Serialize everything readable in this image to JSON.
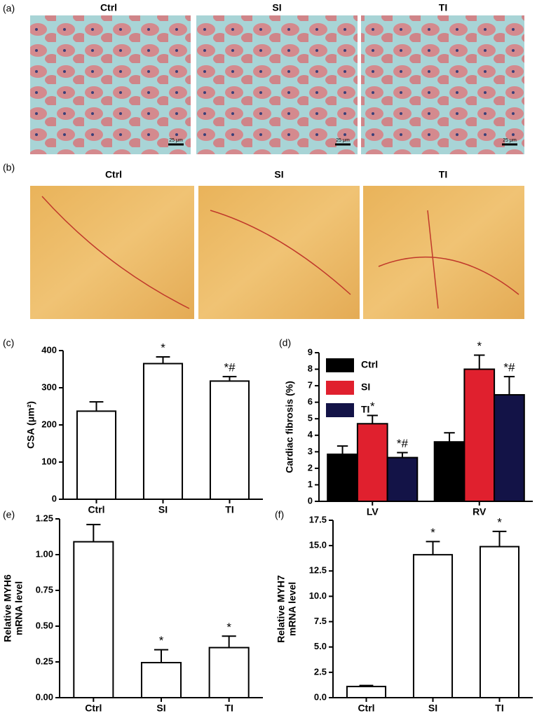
{
  "image_panels": [
    {
      "label": "(a)",
      "titles": [
        "Ctrl",
        "SI",
        "TI"
      ],
      "scale_bar": "25 μm"
    },
    {
      "label": "(b)",
      "titles": [
        "Ctrl",
        "SI",
        "TI"
      ]
    }
  ],
  "chart_data": [
    {
      "type": "bar",
      "label": "(c)",
      "ylabel": [
        "CSA (μm²)"
      ],
      "categories": [
        "Ctrl",
        "SI",
        "TI"
      ],
      "values": [
        237,
        365,
        318
      ],
      "errors": [
        25,
        18,
        12
      ],
      "annotations": [
        null,
        "*",
        "*#"
      ],
      "ylim": [
        0,
        400
      ],
      "yticks": [
        0,
        100,
        200,
        300,
        400
      ]
    },
    {
      "type": "grouped_bar",
      "label": "(d)",
      "ylabel": [
        "Cardiac fibrosis (%)"
      ],
      "categories": [
        "LV",
        "RV"
      ],
      "series": [
        {
          "name": "Ctrl",
          "color": "#000000",
          "values": [
            2.85,
            3.6
          ],
          "errors": [
            0.5,
            0.55
          ],
          "annotations": [
            null,
            null
          ]
        },
        {
          "name": "SI",
          "color": "#e0202e",
          "values": [
            4.7,
            8.0
          ],
          "errors": [
            0.5,
            0.85
          ],
          "annotations": [
            "*",
            "*"
          ]
        },
        {
          "name": "TI",
          "color": "#131347",
          "values": [
            2.65,
            6.45
          ],
          "errors": [
            0.3,
            1.1
          ],
          "annotations": [
            "*#",
            "*#"
          ]
        }
      ],
      "ylim": [
        0,
        9
      ],
      "yticks": [
        0,
        1,
        2,
        3,
        4,
        5,
        6,
        7,
        8,
        9
      ]
    },
    {
      "type": "bar",
      "label": "(e)",
      "ylabel": [
        "Relative MYH6",
        "mRNA level"
      ],
      "categories": [
        "Ctrl",
        "SI",
        "TI"
      ],
      "values": [
        1.09,
        0.245,
        0.35
      ],
      "errors": [
        0.12,
        0.09,
        0.08
      ],
      "annotations": [
        null,
        "*",
        "*"
      ],
      "ylim": [
        0,
        1.25
      ],
      "yticks": [
        {
          "value": 0,
          "label": "0.00"
        },
        0.25,
        {
          "value": 0.5,
          "label": "0.50"
        },
        0.75,
        {
          "value": 1,
          "label": "1.00"
        },
        1.25
      ]
    },
    {
      "type": "bar",
      "label": "(f)",
      "ylabel": [
        "Relative MYH7",
        "mRNA level"
      ],
      "categories": [
        "Ctrl",
        "SI",
        "TI"
      ],
      "values": [
        1.1,
        14.1,
        14.9
      ],
      "errors": [
        0.1,
        1.3,
        1.5
      ],
      "annotations": [
        null,
        "*",
        "*"
      ],
      "ylim": [
        0,
        17.5
      ],
      "yticks": [
        {
          "value": 0,
          "label": "0.0"
        },
        2.5,
        {
          "value": 5,
          "label": "5.0"
        },
        7.5,
        {
          "value": 10,
          "label": "10.0"
        },
        12.5,
        {
          "value": 15,
          "label": "15.0"
        },
        17.5
      ]
    }
  ]
}
